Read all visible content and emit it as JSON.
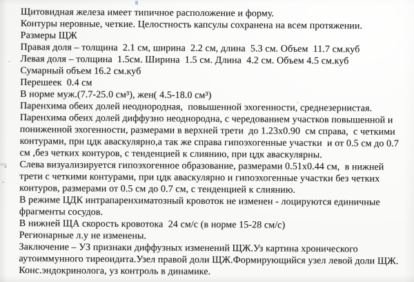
{
  "doc": {
    "kind": "Протокол УЗИ щитовидной железы (скан)",
    "lines": [
      "Щитовидная железа имеет типичное расположение и форму.",
      "Контуры неровные, четкие. Целостность капсулы сохранена на всем протяжении.",
      "Размеры ЩЖ",
      "Правая доля – толщина  2.1 см, ширина  2.2 см, длина  5.3 см. Объем  11.7 см.куб",
      "Левая доля – толщина  1.5см. Ширина  1.5 см. Длина  4.2 см. Объем 4.5 см.куб",
      "Сумарный объем 16.2 см.куб",
      "Перешеек  0.4 см",
      "В норме муж.(7.7-25.0 см³), жен( 4.5-18.0 см³)",
      "Паренхима обеих долей неоднородная,  повышенной эхогенности, среднезернистая.",
      "Паренхима обеих долей диффузно неоднородна, с чередованием участков повышенной и",
      "пониженной эхогенности, размерами в верхней трети  до 1.23x0.90  см справа,  с четкими",
      "контурами, при цдк аваскулярно,а так же справа гипоэхогенные участки  и от 0.5 см до 0.7",
      "см ,без четких контуров, с тенденцией к слиянию, при цдк аваскулярны.",
      "Слева визуализируется гипоэхогенное образование, размерами 0.51x0.44 см,  в нижней",
      "трети с четкими контурами, при цдк аваскулярно и гипоэхогенные участки без четких",
      "контуров, размерами от 0.5 см до 0.7 см, с тенденцией к слиянию.",
      "В режиме ЦДК интрапаренхиматозный кровоток не изменен - лоцируются единичные",
      "фрагменты сосудов.",
      "В нижней ЩА скорость кровотока  24 см/с (в норме 15-28 см/с)",
      "Регионарные л.у не изменены.",
      "Заключение – УЗ признаки диффузных изменений ЩЖ.Уз картина хронического",
      "аутоиммунного тиреоидита.Узел правой доли ЩЖ.Формирующийся узел левой доли ЩЖ.",
      "Конс.эндокринолога, уз контроль в динамике."
    ]
  },
  "colors": {
    "paper": "#f9f9f7",
    "ink": "#1b1b1b",
    "pen_mark": "#9db9e0"
  }
}
